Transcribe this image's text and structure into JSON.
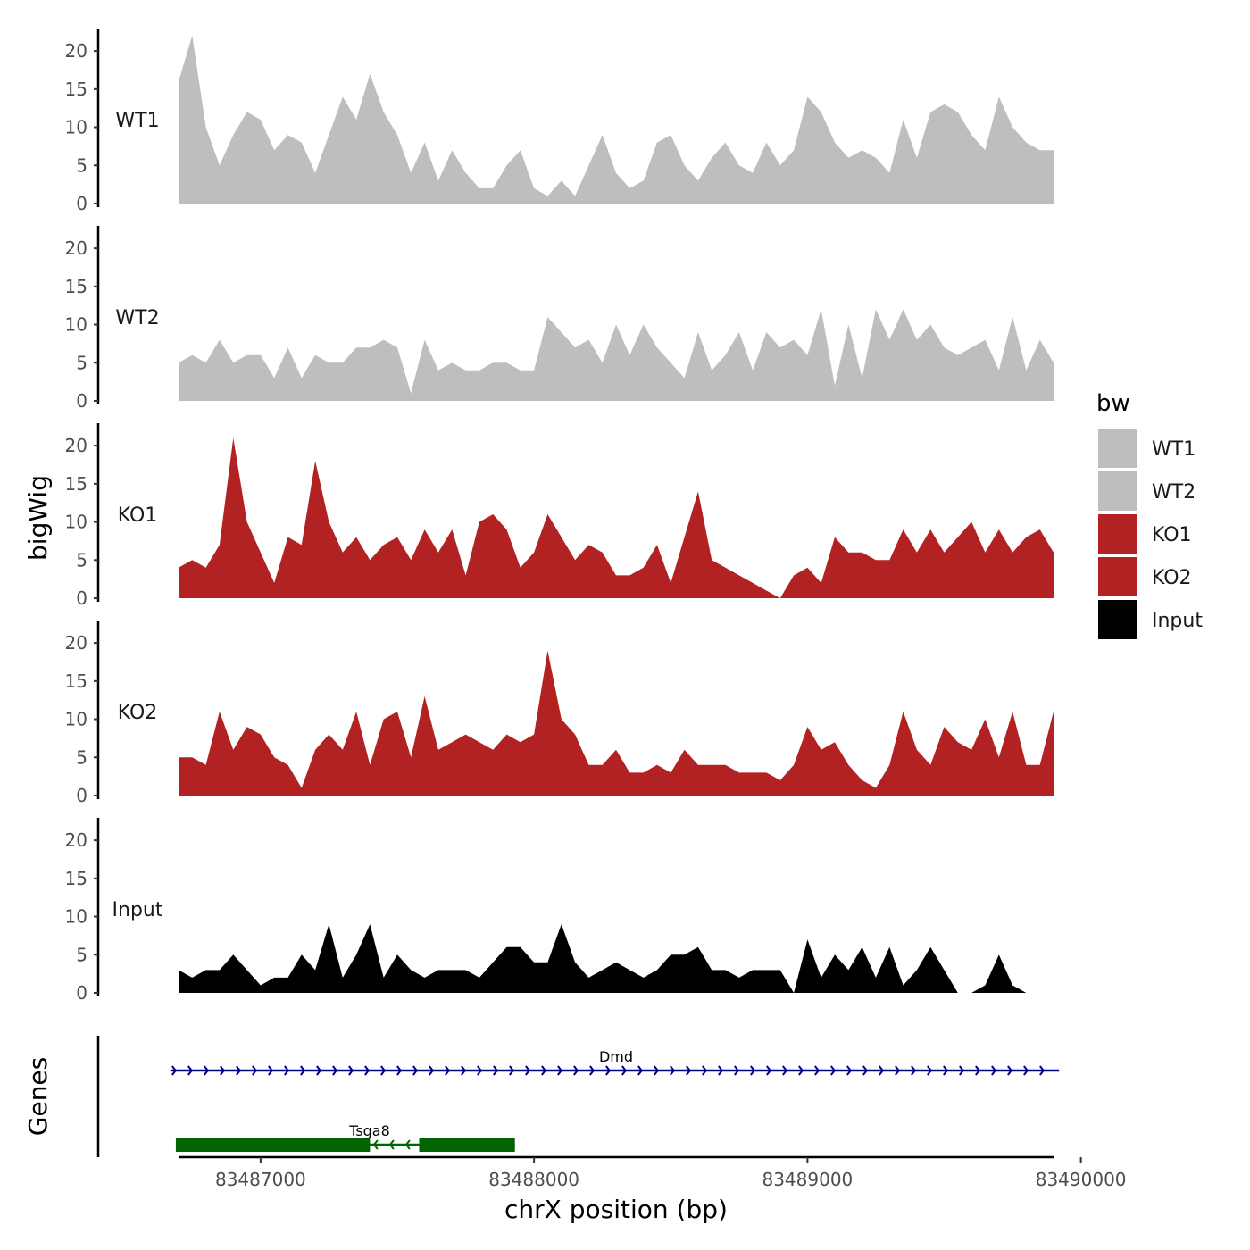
{
  "chart_data": {
    "type": "area",
    "title": "",
    "xlabel": "chrX position (bp)",
    "ylabel": "bigWig",
    "genes_label": "Genes",
    "xlim": [
      83486700,
      83489900
    ],
    "ylim": [
      0,
      22
    ],
    "x_ticks": [
      83487000,
      83488000,
      83489000,
      83490000
    ],
    "x_tick_labels": [
      "83487000",
      "83488000",
      "83489000",
      "83490000"
    ],
    "y_ticks": [
      0,
      5,
      10,
      15,
      20
    ],
    "y_tick_labels": [
      "0",
      "5",
      "10",
      "15",
      "20"
    ],
    "x": [
      83486700,
      83486750,
      83486800,
      83486850,
      83486900,
      83486950,
      83487000,
      83487050,
      83487100,
      83487150,
      83487200,
      83487250,
      83487300,
      83487350,
      83487400,
      83487450,
      83487500,
      83487550,
      83487600,
      83487650,
      83487700,
      83487750,
      83487800,
      83487850,
      83487900,
      83487950,
      83488000,
      83488050,
      83488100,
      83488150,
      83488200,
      83488250,
      83488300,
      83488350,
      83488400,
      83488450,
      83488500,
      83488550,
      83488600,
      83488650,
      83488700,
      83488750,
      83488800,
      83488850,
      83488900,
      83488950,
      83489000,
      83489050,
      83489100,
      83489150,
      83489200,
      83489250,
      83489300,
      83489350,
      83489400,
      83489450,
      83489500,
      83489550,
      83489600,
      83489650,
      83489700,
      83489750,
      83489800,
      83489850,
      83489900
    ],
    "series": [
      {
        "name": "WT1",
        "color": "#bebebe",
        "values": [
          16,
          22,
          10,
          5,
          9,
          12,
          11,
          7,
          9,
          8,
          4,
          9,
          14,
          11,
          17,
          12,
          9,
          4,
          8,
          3,
          7,
          4,
          2,
          2,
          5,
          7,
          2,
          1,
          3,
          1,
          5,
          9,
          4,
          2,
          3,
          8,
          9,
          5,
          3,
          6,
          8,
          5,
          4,
          8,
          5,
          7,
          14,
          12,
          8,
          6,
          7,
          6,
          4,
          11,
          6,
          12,
          13,
          12,
          9,
          7,
          14,
          10,
          8,
          7,
          7
        ]
      },
      {
        "name": "WT2",
        "color": "#bebebe",
        "values": [
          5,
          6,
          5,
          8,
          5,
          6,
          6,
          3,
          7,
          3,
          6,
          5,
          5,
          7,
          7,
          8,
          7,
          1,
          8,
          4,
          5,
          4,
          4,
          5,
          5,
          4,
          4,
          11,
          9,
          7,
          8,
          5,
          10,
          6,
          10,
          7,
          5,
          3,
          9,
          4,
          6,
          9,
          4,
          9,
          7,
          8,
          6,
          12,
          2,
          10,
          3,
          12,
          8,
          12,
          8,
          10,
          7,
          6,
          7,
          8,
          4,
          11,
          4,
          8,
          5
        ]
      },
      {
        "name": "KO1",
        "color": "#b22222",
        "values": [
          4,
          5,
          4,
          7,
          21,
          10,
          6,
          2,
          8,
          7,
          18,
          10,
          6,
          8,
          5,
          7,
          8,
          5,
          9,
          6,
          9,
          3,
          10,
          11,
          9,
          4,
          6,
          11,
          8,
          5,
          7,
          6,
          3,
          3,
          4,
          7,
          2,
          8,
          14,
          5,
          4,
          3,
          2,
          1,
          0,
          3,
          4,
          2,
          8,
          6,
          6,
          5,
          5,
          9,
          6,
          9,
          6,
          8,
          10,
          6,
          9,
          6,
          8,
          9,
          6
        ]
      },
      {
        "name": "KO2",
        "color": "#b22222",
        "values": [
          5,
          5,
          4,
          11,
          6,
          9,
          8,
          5,
          4,
          1,
          6,
          8,
          6,
          11,
          4,
          10,
          11,
          5,
          13,
          6,
          7,
          8,
          7,
          6,
          8,
          7,
          8,
          19,
          10,
          8,
          4,
          4,
          6,
          3,
          3,
          4,
          3,
          6,
          4,
          4,
          4,
          3,
          3,
          3,
          2,
          4,
          9,
          6,
          7,
          4,
          2,
          1,
          4,
          11,
          6,
          4,
          9,
          7,
          6,
          10,
          5,
          11,
          4,
          4,
          11
        ]
      },
      {
        "name": "Input",
        "color": "#000000",
        "values": [
          3,
          2,
          3,
          3,
          5,
          3,
          1,
          2,
          2,
          5,
          3,
          9,
          2,
          5,
          9,
          2,
          5,
          3,
          2,
          3,
          3,
          3,
          2,
          4,
          6,
          6,
          4,
          4,
          9,
          4,
          2,
          3,
          4,
          3,
          2,
          3,
          5,
          5,
          6,
          3,
          3,
          2,
          3,
          3,
          3,
          0,
          7,
          2,
          5,
          3,
          6,
          2,
          6,
          1,
          3,
          6,
          3,
          0,
          0,
          1,
          5,
          1,
          0,
          0,
          0
        ]
      }
    ],
    "genes": [
      {
        "name": "Dmd",
        "strand": "+",
        "color": "#000080",
        "start": 83486670,
        "end": 83489920,
        "exons": []
      },
      {
        "name": "Tsga8",
        "strand": "-",
        "color": "#006400",
        "start": 83486690,
        "end": 83487930,
        "exons": [
          [
            83486690,
            83487400
          ],
          [
            83487580,
            83487930
          ]
        ]
      }
    ],
    "legend": {
      "title": "bw",
      "position": "right",
      "items": [
        {
          "label": "WT1",
          "color": "#bebebe"
        },
        {
          "label": "WT2",
          "color": "#bebebe"
        },
        {
          "label": "KO1",
          "color": "#b22222"
        },
        {
          "label": "KO2",
          "color": "#b22222"
        },
        {
          "label": "Input",
          "color": "#000000"
        }
      ]
    }
  }
}
